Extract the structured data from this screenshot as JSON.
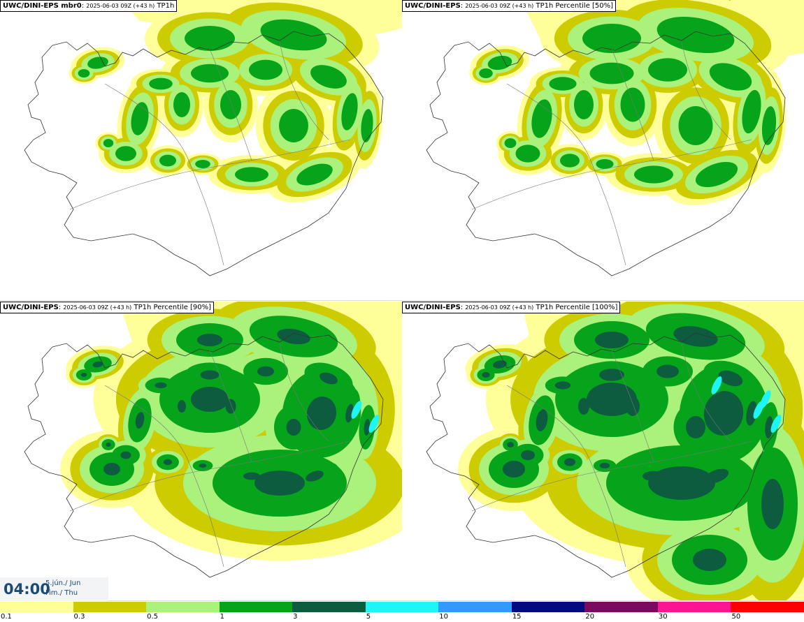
{
  "panels": [
    {
      "model": "UWC/DINI-EPS mbr0",
      "run": "2025-06-03 09Z (+43 h)",
      "field": "TP1h",
      "intensity": 0
    },
    {
      "model": "UWC/DINI-EPS",
      "run": "2025-06-03 09Z (+43 h)",
      "field": "TP1h Percentile [50%]",
      "intensity": 1
    },
    {
      "model": "UWC/DINI-EPS",
      "run": "2025-06-03 09Z (+43 h)",
      "field": "TP1h Percentile [90%]",
      "intensity": 2
    },
    {
      "model": "UWC/DINI-EPS",
      "run": "2025-06-03 09Z (+43 h)",
      "field": "TP1h Percentile [100%]",
      "intensity": 3
    }
  ],
  "valid_time": {
    "time": "04:00",
    "date_line": "5.jún./ Jun",
    "day_line": "Fim./ Thu"
  },
  "legend": {
    "bins": [
      {
        "label": "0.1",
        "color": "#ffff99"
      },
      {
        "label": "0.3",
        "color": "#cccc00"
      },
      {
        "label": "0.5",
        "color": "#aaf27c"
      },
      {
        "label": "1",
        "color": "#06a41a"
      },
      {
        "label": "3",
        "color": "#0d5c40"
      },
      {
        "label": "5",
        "color": "#1ef5f5"
      },
      {
        "label": "10",
        "color": "#3399ff"
      },
      {
        "label": "15",
        "color": "#000b80"
      },
      {
        "label": "20",
        "color": "#7a0a60"
      },
      {
        "label": "30",
        "color": "#ff1493"
      },
      {
        "label": "50",
        "color": "#ff0000"
      }
    ]
  }
}
